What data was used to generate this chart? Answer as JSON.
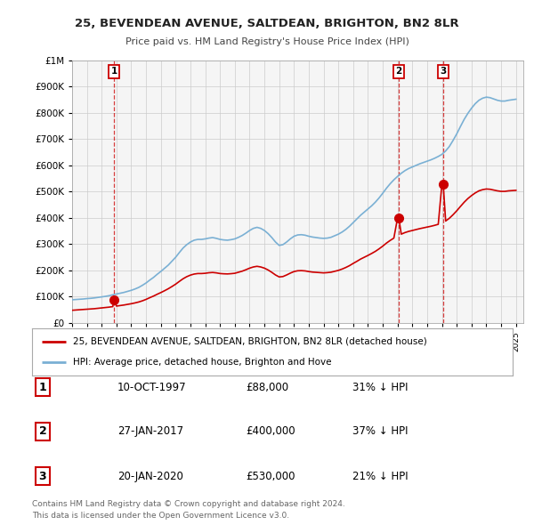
{
  "title": "25, BEVENDEAN AVENUE, SALTDEAN, BRIGHTON, BN2 8LR",
  "subtitle": "Price paid vs. HM Land Registry's House Price Index (HPI)",
  "property_label": "25, BEVENDEAN AVENUE, SALTDEAN, BRIGHTON, BN2 8LR (detached house)",
  "hpi_label": "HPI: Average price, detached house, Brighton and Hove",
  "sale_annotations": [
    {
      "label": "1",
      "date": "10-OCT-1997",
      "price": "£88,000",
      "hpi": "31% ↓ HPI"
    },
    {
      "label": "2",
      "date": "27-JAN-2017",
      "price": "£400,000",
      "hpi": "37% ↓ HPI"
    },
    {
      "label": "3",
      "date": "20-JAN-2020",
      "price": "£530,000",
      "hpi": "21% ↓ HPI"
    }
  ],
  "footer": [
    "Contains HM Land Registry data © Crown copyright and database right 2024.",
    "This data is licensed under the Open Government Licence v3.0."
  ],
  "property_color": "#cc0000",
  "hpi_color": "#7ab0d4",
  "ylim": [
    0,
    1000000
  ],
  "yticks": [
    0,
    100000,
    200000,
    300000,
    400000,
    500000,
    600000,
    700000,
    800000,
    900000,
    1000000
  ],
  "ytick_labels": [
    "£0",
    "£100K",
    "£200K",
    "£300K",
    "£400K",
    "£500K",
    "£600K",
    "£700K",
    "£800K",
    "£900K",
    "£1M"
  ],
  "background_color": "#ffffff",
  "plot_bg_color": "#f5f5f5",
  "sale_date_nums": [
    1997.833,
    2017.083,
    2020.083
  ],
  "sale_prices_vals": [
    88000,
    400000,
    530000
  ],
  "hpi_points": [
    [
      1995.0,
      88000
    ],
    [
      1995.25,
      89000
    ],
    [
      1995.5,
      90000
    ],
    [
      1995.75,
      91000
    ],
    [
      1996.0,
      92500
    ],
    [
      1996.25,
      93500
    ],
    [
      1996.5,
      95000
    ],
    [
      1996.75,
      97000
    ],
    [
      1997.0,
      99000
    ],
    [
      1997.25,
      101000
    ],
    [
      1997.5,
      103500
    ],
    [
      1997.75,
      107000
    ],
    [
      1998.0,
      110000
    ],
    [
      1998.25,
      113000
    ],
    [
      1998.5,
      116000
    ],
    [
      1998.75,
      120000
    ],
    [
      1999.0,
      124000
    ],
    [
      1999.25,
      129000
    ],
    [
      1999.5,
      135000
    ],
    [
      1999.75,
      143000
    ],
    [
      2000.0,
      152000
    ],
    [
      2000.25,
      163000
    ],
    [
      2000.5,
      173000
    ],
    [
      2000.75,
      185000
    ],
    [
      2001.0,
      196000
    ],
    [
      2001.25,
      208000
    ],
    [
      2001.5,
      220000
    ],
    [
      2001.75,
      235000
    ],
    [
      2002.0,
      250000
    ],
    [
      2002.25,
      268000
    ],
    [
      2002.5,
      285000
    ],
    [
      2002.75,
      298000
    ],
    [
      2003.0,
      308000
    ],
    [
      2003.25,
      315000
    ],
    [
      2003.5,
      318000
    ],
    [
      2003.75,
      318000
    ],
    [
      2004.0,
      320000
    ],
    [
      2004.25,
      323000
    ],
    [
      2004.5,
      325000
    ],
    [
      2004.75,
      322000
    ],
    [
      2005.0,
      318000
    ],
    [
      2005.25,
      316000
    ],
    [
      2005.5,
      315000
    ],
    [
      2005.75,
      317000
    ],
    [
      2006.0,
      320000
    ],
    [
      2006.25,
      326000
    ],
    [
      2006.5,
      333000
    ],
    [
      2006.75,
      342000
    ],
    [
      2007.0,
      352000
    ],
    [
      2007.25,
      360000
    ],
    [
      2007.5,
      364000
    ],
    [
      2007.75,
      360000
    ],
    [
      2008.0,
      352000
    ],
    [
      2008.25,
      340000
    ],
    [
      2008.5,
      325000
    ],
    [
      2008.75,
      308000
    ],
    [
      2009.0,
      295000
    ],
    [
      2009.25,
      298000
    ],
    [
      2009.5,
      308000
    ],
    [
      2009.75,
      320000
    ],
    [
      2010.0,
      330000
    ],
    [
      2010.25,
      335000
    ],
    [
      2010.5,
      336000
    ],
    [
      2010.75,
      334000
    ],
    [
      2011.0,
      330000
    ],
    [
      2011.25,
      327000
    ],
    [
      2011.5,
      325000
    ],
    [
      2011.75,
      323000
    ],
    [
      2012.0,
      322000
    ],
    [
      2012.25,
      323000
    ],
    [
      2012.5,
      326000
    ],
    [
      2012.75,
      332000
    ],
    [
      2013.0,
      338000
    ],
    [
      2013.25,
      346000
    ],
    [
      2013.5,
      356000
    ],
    [
      2013.75,
      368000
    ],
    [
      2014.0,
      382000
    ],
    [
      2014.25,
      396000
    ],
    [
      2014.5,
      410000
    ],
    [
      2014.75,
      422000
    ],
    [
      2015.0,
      434000
    ],
    [
      2015.25,
      446000
    ],
    [
      2015.5,
      460000
    ],
    [
      2015.75,
      476000
    ],
    [
      2016.0,
      494000
    ],
    [
      2016.25,
      513000
    ],
    [
      2016.5,
      530000
    ],
    [
      2016.75,
      545000
    ],
    [
      2017.0,
      558000
    ],
    [
      2017.25,
      570000
    ],
    [
      2017.5,
      580000
    ],
    [
      2017.75,
      588000
    ],
    [
      2018.0,
      594000
    ],
    [
      2018.25,
      600000
    ],
    [
      2018.5,
      606000
    ],
    [
      2018.75,
      611000
    ],
    [
      2019.0,
      616000
    ],
    [
      2019.25,
      621000
    ],
    [
      2019.5,
      627000
    ],
    [
      2019.75,
      634000
    ],
    [
      2020.0,
      642000
    ],
    [
      2020.25,
      655000
    ],
    [
      2020.5,
      672000
    ],
    [
      2020.75,
      695000
    ],
    [
      2021.0,
      720000
    ],
    [
      2021.25,
      748000
    ],
    [
      2021.5,
      775000
    ],
    [
      2021.75,
      798000
    ],
    [
      2022.0,
      818000
    ],
    [
      2022.25,
      835000
    ],
    [
      2022.5,
      848000
    ],
    [
      2022.75,
      856000
    ],
    [
      2023.0,
      860000
    ],
    [
      2023.25,
      858000
    ],
    [
      2023.5,
      853000
    ],
    [
      2023.75,
      848000
    ],
    [
      2024.0,
      845000
    ],
    [
      2024.25,
      845000
    ],
    [
      2024.5,
      848000
    ],
    [
      2024.75,
      850000
    ],
    [
      2025.0,
      852000
    ]
  ],
  "prop_points": [
    [
      1995.0,
      48000
    ],
    [
      1995.25,
      49000
    ],
    [
      1995.5,
      50000
    ],
    [
      1995.75,
      51000
    ],
    [
      1996.0,
      52000
    ],
    [
      1996.25,
      53000
    ],
    [
      1996.5,
      54000
    ],
    [
      1996.75,
      55500
    ],
    [
      1997.0,
      57000
    ],
    [
      1997.25,
      58500
    ],
    [
      1997.5,
      60000
    ],
    [
      1997.75,
      62000
    ],
    [
      1997.833,
      88000
    ],
    [
      1998.0,
      64000
    ],
    [
      1998.25,
      66000
    ],
    [
      1998.5,
      68000
    ],
    [
      1998.75,
      70500
    ],
    [
      1999.0,
      73000
    ],
    [
      1999.25,
      76000
    ],
    [
      1999.5,
      79500
    ],
    [
      1999.75,
      84000
    ],
    [
      2000.0,
      89500
    ],
    [
      2000.25,
      96000
    ],
    [
      2000.5,
      102000
    ],
    [
      2000.75,
      109000
    ],
    [
      2001.0,
      115500
    ],
    [
      2001.25,
      122500
    ],
    [
      2001.5,
      130000
    ],
    [
      2001.75,
      138500
    ],
    [
      2002.0,
      147500
    ],
    [
      2002.25,
      158000
    ],
    [
      2002.5,
      168000
    ],
    [
      2002.75,
      176000
    ],
    [
      2003.0,
      182000
    ],
    [
      2003.25,
      186000
    ],
    [
      2003.5,
      188000
    ],
    [
      2003.75,
      188000
    ],
    [
      2004.0,
      189000
    ],
    [
      2004.25,
      191000
    ],
    [
      2004.5,
      192000
    ],
    [
      2004.75,
      190500
    ],
    [
      2005.0,
      188000
    ],
    [
      2005.25,
      187000
    ],
    [
      2005.5,
      186500
    ],
    [
      2005.75,
      187500
    ],
    [
      2006.0,
      189000
    ],
    [
      2006.25,
      193000
    ],
    [
      2006.5,
      197000
    ],
    [
      2006.75,
      202500
    ],
    [
      2007.0,
      208500
    ],
    [
      2007.25,
      213000
    ],
    [
      2007.5,
      215500
    ],
    [
      2007.75,
      213000
    ],
    [
      2008.0,
      208500
    ],
    [
      2008.25,
      201500
    ],
    [
      2008.5,
      192500
    ],
    [
      2008.75,
      182500
    ],
    [
      2009.0,
      175000
    ],
    [
      2009.25,
      176500
    ],
    [
      2009.5,
      182500
    ],
    [
      2009.75,
      189500
    ],
    [
      2010.0,
      195500
    ],
    [
      2010.25,
      198500
    ],
    [
      2010.5,
      199000
    ],
    [
      2010.75,
      198000
    ],
    [
      2011.0,
      195500
    ],
    [
      2011.25,
      193500
    ],
    [
      2011.5,
      192500
    ],
    [
      2011.75,
      191500
    ],
    [
      2012.0,
      190500
    ],
    [
      2012.25,
      191500
    ],
    [
      2012.5,
      193000
    ],
    [
      2012.75,
      196500
    ],
    [
      2013.0,
      200000
    ],
    [
      2013.25,
      205000
    ],
    [
      2013.5,
      211000
    ],
    [
      2013.75,
      218000
    ],
    [
      2014.0,
      226500
    ],
    [
      2014.25,
      234500
    ],
    [
      2014.5,
      243000
    ],
    [
      2014.75,
      250000
    ],
    [
      2015.0,
      257000
    ],
    [
      2015.25,
      264500
    ],
    [
      2015.5,
      272500
    ],
    [
      2015.75,
      282000
    ],
    [
      2016.0,
      292500
    ],
    [
      2016.25,
      304000
    ],
    [
      2016.5,
      314000
    ],
    [
      2016.75,
      323000
    ],
    [
      2017.0,
      400000
    ],
    [
      2017.083,
      400000
    ],
    [
      2017.25,
      338000
    ],
    [
      2017.5,
      344000
    ],
    [
      2017.75,
      348500
    ],
    [
      2018.0,
      352000
    ],
    [
      2018.25,
      355500
    ],
    [
      2018.5,
      359000
    ],
    [
      2018.75,
      362000
    ],
    [
      2019.0,
      365000
    ],
    [
      2019.25,
      368000
    ],
    [
      2019.5,
      371500
    ],
    [
      2019.75,
      375500
    ],
    [
      2020.0,
      530000
    ],
    [
      2020.083,
      530000
    ],
    [
      2020.25,
      388000
    ],
    [
      2020.5,
      398500
    ],
    [
      2020.75,
      412000
    ],
    [
      2021.0,
      427000
    ],
    [
      2021.25,
      443500
    ],
    [
      2021.5,
      459500
    ],
    [
      2021.75,
      473500
    ],
    [
      2022.0,
      485000
    ],
    [
      2022.25,
      495000
    ],
    [
      2022.5,
      503000
    ],
    [
      2022.75,
      507500
    ],
    [
      2023.0,
      510000
    ],
    [
      2023.25,
      509000
    ],
    [
      2023.5,
      506000
    ],
    [
      2023.75,
      503000
    ],
    [
      2024.0,
      501000
    ],
    [
      2024.25,
      501000
    ],
    [
      2024.5,
      503000
    ],
    [
      2025.0,
      505000
    ]
  ]
}
